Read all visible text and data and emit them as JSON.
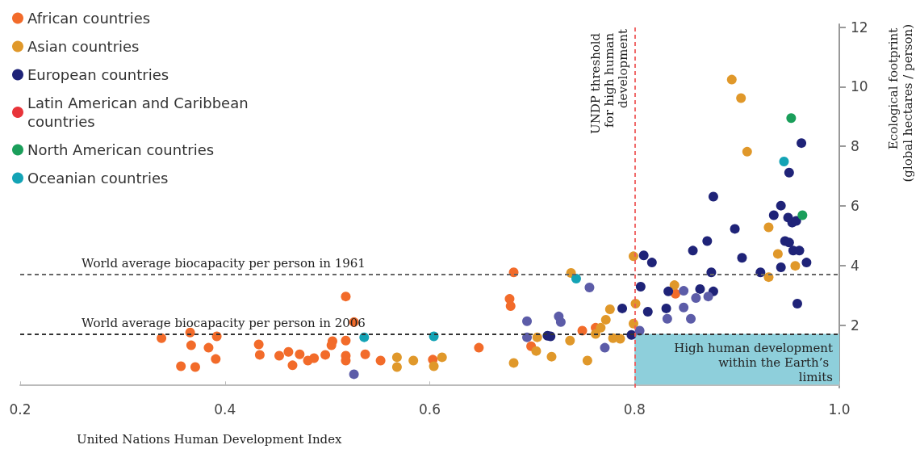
{
  "chart_data": {
    "type": "scatter",
    "xlabel": "United Nations Human Development Index",
    "ylabel": "Ecological footprint (global hectares / person)",
    "xlim": [
      0.2,
      1.0
    ],
    "xticks": [
      {
        "value": 0.2,
        "label": "0.2"
      },
      {
        "value": 0.4,
        "label": "0.4"
      },
      {
        "value": 0.6,
        "label": "0.6"
      },
      {
        "value": 0.8,
        "label": "0.8"
      },
      {
        "value": 1.0,
        "label": "1.0"
      }
    ],
    "ylim": [
      -0.1,
      12.1
    ],
    "yticks": [
      2,
      4,
      6,
      8,
      10,
      12
    ],
    "grid": false,
    "legend": "top left",
    "marker": "circle",
    "series": [
      {
        "name": "African countries",
        "color": "#f26b2a",
        "x": [
          0.338,
          0.366,
          0.392,
          0.367,
          0.384,
          0.391,
          0.357,
          0.371,
          0.433,
          0.434,
          0.453,
          0.462,
          0.473,
          0.466,
          0.481,
          0.487,
          0.498,
          0.505,
          0.504,
          0.518,
          0.518,
          0.518,
          0.518,
          0.526,
          0.537,
          0.552,
          0.603,
          0.648,
          0.678,
          0.679,
          0.682,
          0.699,
          0.749,
          0.762,
          0.84
        ],
        "values": [
          1.56,
          1.75,
          1.62,
          1.32,
          1.24,
          0.86,
          0.62,
          0.59,
          1.35,
          1.0,
          0.97,
          1.1,
          1.02,
          0.65,
          0.81,
          0.89,
          1.0,
          1.46,
          1.32,
          1.48,
          0.97,
          0.81,
          2.96,
          2.1,
          1.02,
          0.81,
          0.84,
          1.24,
          2.88,
          2.64,
          3.77,
          1.29,
          1.81,
          1.91,
          3.05
        ]
      },
      {
        "name": "Asian countries",
        "color": "#e0982a",
        "x": [
          0.568,
          0.568,
          0.584,
          0.604,
          0.612,
          0.682,
          0.705,
          0.704,
          0.738,
          0.719,
          0.737,
          0.754,
          0.762,
          0.767,
          0.772,
          0.776,
          0.779,
          0.786,
          0.801,
          0.799,
          0.799,
          0.839,
          0.895,
          0.904,
          0.91,
          0.931,
          0.94,
          0.957,
          0.931
        ],
        "values": [
          0.92,
          0.59,
          0.81,
          0.62,
          0.92,
          0.73,
          1.59,
          1.13,
          3.75,
          0.94,
          1.48,
          0.81,
          1.7,
          1.91,
          2.18,
          2.53,
          1.56,
          1.54,
          2.72,
          2.05,
          4.31,
          3.34,
          10.24,
          9.62,
          7.82,
          5.28,
          4.39,
          3.99,
          3.61
        ]
      },
      {
        "name": "European countries",
        "color": "#1f2378",
        "x": [
          0.715,
          0.718,
          0.788,
          0.809,
          0.817,
          0.806,
          0.813,
          0.831,
          0.833,
          0.797,
          0.963,
          0.951,
          0.877,
          0.943,
          0.936,
          0.95,
          0.954,
          0.958,
          0.898,
          0.857,
          0.871,
          0.947,
          0.951,
          0.955,
          0.961,
          0.905,
          0.968,
          0.943,
          0.923,
          0.875,
          0.959,
          0.864,
          0.877,
          0.526,
          0.695,
          0.695,
          0.726,
          0.728,
          0.756,
          0.771,
          0.805,
          0.832,
          0.848,
          0.86,
          0.872,
          0.848,
          0.855
        ],
        "values": [
          1.64,
          1.62,
          2.56,
          4.34,
          4.1,
          3.29,
          2.45,
          2.56,
          3.13,
          1.67,
          8.11,
          7.12,
          6.31,
          6.01,
          5.69,
          5.61,
          5.44,
          5.5,
          5.23,
          4.5,
          4.82,
          4.82,
          4.77,
          4.5,
          4.5,
          4.26,
          4.1,
          3.94,
          3.77,
          3.77,
          2.72,
          3.21,
          3.13,
          0.35,
          2.13,
          1.59,
          2.29,
          2.1,
          3.26,
          1.24,
          1.81,
          2.21,
          3.15,
          2.91,
          2.96,
          2.59,
          2.21
        ],
        "colors": [
          "#1f2378",
          "#1f2378",
          "#1f2378",
          "#1f2378",
          "#1f2378",
          "#1f2378",
          "#1f2378",
          "#1f2378",
          "#1f2378",
          "#1f2378",
          "#1f2378",
          "#1f2378",
          "#1f2378",
          "#1f2378",
          "#1f2378",
          "#1f2378",
          "#1f2378",
          "#1f2378",
          "#1f2378",
          "#1f2378",
          "#1f2378",
          "#1f2378",
          "#1f2378",
          "#1f2378",
          "#1f2378",
          "#1f2378",
          "#1f2378",
          "#1f2378",
          "#1f2378",
          "#1f2378",
          "#1f2378",
          "#1f2378",
          "#1f2378",
          "#5c5ca8",
          "#5c5ca8",
          "#5c5ca8",
          "#5c5ca8",
          "#5c5ca8",
          "#5c5ca8",
          "#5c5ca8",
          "#5c5ca8",
          "#5c5ca8",
          "#5c5ca8",
          "#5c5ca8",
          "#5c5ca8",
          "#5c5ca8",
          "#5c5ca8"
        ]
      },
      {
        "name": "Latin American and Caribbean countries",
        "color": "#e8343a"
      },
      {
        "name": "North American countries",
        "color": "#1a9e5a",
        "x": [
          0.953,
          0.964
        ],
        "values": [
          8.95,
          5.69
        ]
      },
      {
        "name": "Oceanian countries",
        "color": "#13a3b5",
        "x": [
          0.536,
          0.604,
          0.743,
          0.946
        ],
        "values": [
          1.59,
          1.62,
          3.56,
          7.49
        ]
      }
    ],
    "ref_lines": [
      {
        "axis": "y",
        "value": 3.7,
        "label": "World average biocapacity per person in 1961",
        "color": "#666666",
        "line_style": "dashed"
      },
      {
        "axis": "y",
        "value": 1.7,
        "label": "World average biocapacity per person in 2006",
        "color": "#333333",
        "line_style": "dashed"
      },
      {
        "axis": "x",
        "value": 0.8,
        "label": "UNDP threshold for high human development",
        "color": "#ef5a5a",
        "line_style": "dashed"
      }
    ],
    "bands": [
      {
        "axis": "y",
        "from": 0,
        "to": 1.7,
        "label": "High human development within the Earth’s limits",
        "color": "#8ecfdb"
      }
    ]
  }
}
